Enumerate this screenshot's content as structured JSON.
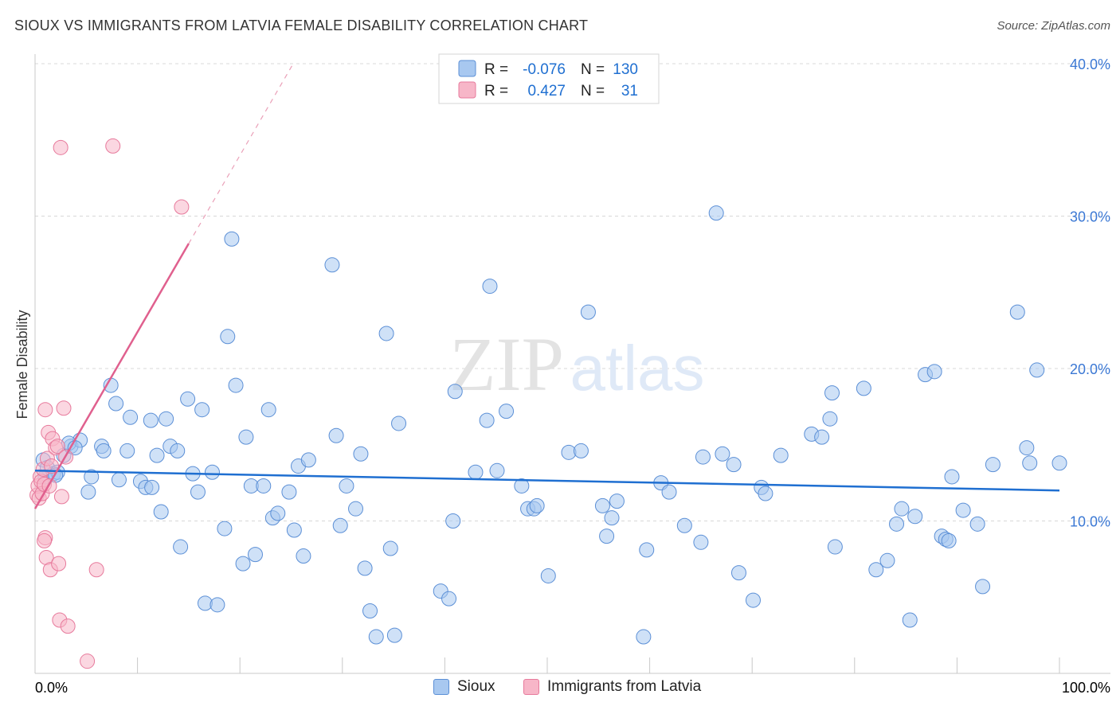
{
  "header": {
    "title": "SIOUX VS IMMIGRANTS FROM LATVIA FEMALE DISABILITY CORRELATION CHART",
    "source": "Source: ZipAtlas.com"
  },
  "watermark": {
    "zip": "ZIP",
    "atlas": "atlas"
  },
  "colors": {
    "blue_fill": "#a8c8f0",
    "blue_stroke": "#5b8fd6",
    "blue_line": "#1f6fd1",
    "pink_fill": "#f7b6c8",
    "pink_stroke": "#e77a9c",
    "pink_line": "#e0608e",
    "tick_text": "#3b78d4",
    "grid": "#d8d8d8"
  },
  "legend_top": {
    "rows": [
      {
        "r_label": "R =",
        "r_value": "-0.076",
        "n_label": "N =",
        "n_value": "130"
      },
      {
        "r_label": "R =",
        "r_value": "0.427",
        "n_label": "N =",
        "n_value": "31"
      }
    ]
  },
  "legend_bottom": [
    {
      "label": "Sioux"
    },
    {
      "label": "Immigrants from Latvia"
    }
  ],
  "chart_data": {
    "type": "scatter",
    "title": "SIOUX VS IMMIGRANTS FROM LATVIA FEMALE DISABILITY CORRELATION CHART",
    "xlabel": "",
    "ylabel": "Female Disability",
    "xlim": [
      0,
      100
    ],
    "ylim": [
      0,
      40
    ],
    "x_tick_labels": [
      "0.0%",
      "100.0%"
    ],
    "y_ticks": [
      10,
      20,
      30,
      40
    ],
    "y_tick_labels": [
      "10.0%",
      "20.0%",
      "30.0%",
      "40.0%"
    ],
    "grid": true,
    "series": [
      {
        "name": "Sioux",
        "r": -0.076,
        "n": 130,
        "trend": {
          "x": [
            0,
            100
          ],
          "y": [
            13.3,
            12.0
          ],
          "style": "solid"
        },
        "points": [
          [
            0.8,
            14.0
          ],
          [
            1.2,
            13.5
          ],
          [
            1.8,
            13.1
          ],
          [
            2.2,
            13.2
          ],
          [
            2.8,
            14.3
          ],
          [
            3.5,
            14.9
          ],
          [
            4.4,
            15.3
          ],
          [
            3.3,
            15.1
          ],
          [
            3.9,
            14.8
          ],
          [
            6.5,
            14.9
          ],
          [
            5.5,
            12.9
          ],
          [
            5.2,
            11.9
          ],
          [
            6.7,
            14.6
          ],
          [
            7.4,
            18.9
          ],
          [
            7.9,
            17.7
          ],
          [
            8.2,
            12.7
          ],
          [
            9.0,
            14.6
          ],
          [
            9.3,
            16.8
          ],
          [
            10.3,
            12.6
          ],
          [
            10.8,
            12.2
          ],
          [
            11.3,
            16.6
          ],
          [
            11.4,
            12.2
          ],
          [
            11.9,
            14.3
          ],
          [
            12.3,
            10.6
          ],
          [
            12.8,
            16.7
          ],
          [
            13.2,
            14.9
          ],
          [
            13.9,
            14.6
          ],
          [
            14.2,
            8.3
          ],
          [
            14.9,
            18.0
          ],
          [
            15.4,
            13.1
          ],
          [
            15.9,
            11.9
          ],
          [
            16.3,
            17.3
          ],
          [
            16.6,
            4.6
          ],
          [
            17.3,
            13.2
          ],
          [
            17.8,
            4.5
          ],
          [
            18.5,
            9.5
          ],
          [
            18.8,
            22.1
          ],
          [
            19.2,
            28.5
          ],
          [
            19.6,
            18.9
          ],
          [
            20.3,
            7.2
          ],
          [
            20.6,
            15.5
          ],
          [
            21.1,
            12.3
          ],
          [
            21.5,
            7.8
          ],
          [
            22.3,
            12.3
          ],
          [
            22.8,
            17.3
          ],
          [
            23.2,
            10.2
          ],
          [
            23.7,
            10.5
          ],
          [
            24.8,
            11.9
          ],
          [
            25.3,
            9.4
          ],
          [
            25.7,
            13.6
          ],
          [
            26.2,
            7.7
          ],
          [
            26.7,
            14.0
          ],
          [
            29.0,
            26.8
          ],
          [
            29.4,
            15.6
          ],
          [
            29.8,
            9.7
          ],
          [
            30.4,
            12.3
          ],
          [
            31.3,
            10.8
          ],
          [
            31.8,
            14.4
          ],
          [
            32.2,
            6.9
          ],
          [
            32.7,
            4.1
          ],
          [
            33.3,
            2.4
          ],
          [
            34.3,
            22.3
          ],
          [
            34.7,
            8.2
          ],
          [
            35.1,
            2.5
          ],
          [
            35.5,
            16.4
          ],
          [
            39.6,
            5.4
          ],
          [
            40.4,
            4.9
          ],
          [
            40.8,
            10.0
          ],
          [
            41.0,
            18.5
          ],
          [
            43.0,
            13.2
          ],
          [
            44.1,
            16.6
          ],
          [
            44.4,
            25.4
          ],
          [
            45.1,
            13.3
          ],
          [
            46.0,
            17.2
          ],
          [
            47.5,
            12.3
          ],
          [
            48.1,
            10.8
          ],
          [
            48.7,
            10.8
          ],
          [
            49.0,
            11.0
          ],
          [
            50.1,
            6.4
          ],
          [
            52.1,
            14.5
          ],
          [
            53.3,
            14.6
          ],
          [
            54.0,
            23.7
          ],
          [
            55.4,
            11.0
          ],
          [
            55.8,
            9.0
          ],
          [
            56.3,
            10.2
          ],
          [
            56.8,
            11.3
          ],
          [
            59.7,
            8.1
          ],
          [
            61.1,
            12.5
          ],
          [
            61.9,
            11.9
          ],
          [
            63.4,
            9.7
          ],
          [
            65.0,
            8.6
          ],
          [
            65.2,
            14.2
          ],
          [
            66.5,
            30.2
          ],
          [
            67.1,
            14.4
          ],
          [
            68.2,
            13.7
          ],
          [
            68.7,
            6.6
          ],
          [
            70.1,
            4.8
          ],
          [
            70.9,
            12.2
          ],
          [
            71.3,
            11.8
          ],
          [
            72.8,
            14.3
          ],
          [
            75.8,
            15.7
          ],
          [
            76.8,
            15.5
          ],
          [
            77.6,
            16.7
          ],
          [
            77.8,
            18.4
          ],
          [
            78.1,
            8.3
          ],
          [
            80.9,
            18.7
          ],
          [
            82.1,
            6.8
          ],
          [
            83.2,
            7.4
          ],
          [
            84.1,
            9.8
          ],
          [
            84.6,
            10.8
          ],
          [
            85.4,
            3.5
          ],
          [
            85.9,
            10.3
          ],
          [
            86.9,
            19.6
          ],
          [
            87.8,
            19.8
          ],
          [
            88.5,
            9.0
          ],
          [
            88.9,
            8.8
          ],
          [
            89.2,
            8.7
          ],
          [
            89.5,
            12.9
          ],
          [
            90.6,
            10.7
          ],
          [
            92.0,
            9.8
          ],
          [
            92.5,
            5.7
          ],
          [
            93.5,
            13.7
          ],
          [
            95.9,
            23.7
          ],
          [
            96.8,
            14.8
          ],
          [
            97.1,
            13.8
          ],
          [
            97.8,
            19.9
          ],
          [
            100.0,
            13.8
          ],
          [
            1.0,
            12.9
          ],
          [
            2.0,
            13.0
          ],
          [
            59.4,
            2.4
          ]
        ]
      },
      {
        "name": "Immigrants from Latvia",
        "r": 0.427,
        "n": 31,
        "trend": {
          "x": [
            0,
            15
          ],
          "y": [
            10.8,
            28.2
          ],
          "style": "solid",
          "extension": {
            "x": [
              15,
              25.2
            ],
            "y": [
              28.2,
              40.0
            ],
            "style": "dashed"
          }
        },
        "points": [
          [
            0.2,
            11.7
          ],
          [
            0.3,
            12.3
          ],
          [
            0.4,
            11.5
          ],
          [
            0.5,
            12.9
          ],
          [
            0.6,
            12.6
          ],
          [
            0.7,
            11.8
          ],
          [
            0.8,
            13.4
          ],
          [
            0.9,
            12.4
          ],
          [
            1.0,
            8.9
          ],
          [
            1.0,
            17.3
          ],
          [
            1.1,
            7.6
          ],
          [
            1.2,
            14.1
          ],
          [
            1.3,
            15.8
          ],
          [
            1.4,
            12.3
          ],
          [
            1.5,
            6.8
          ],
          [
            1.6,
            13.6
          ],
          [
            1.7,
            15.4
          ],
          [
            2.0,
            14.8
          ],
          [
            2.2,
            14.9
          ],
          [
            2.3,
            7.2
          ],
          [
            2.4,
            3.5
          ],
          [
            2.5,
            34.5
          ],
          [
            2.6,
            11.6
          ],
          [
            2.8,
            17.4
          ],
          [
            3.2,
            3.1
          ],
          [
            3.0,
            14.2
          ],
          [
            5.1,
            0.8
          ],
          [
            6.0,
            6.8
          ],
          [
            7.6,
            34.6
          ],
          [
            14.3,
            30.6
          ],
          [
            0.9,
            8.7
          ]
        ]
      }
    ]
  }
}
